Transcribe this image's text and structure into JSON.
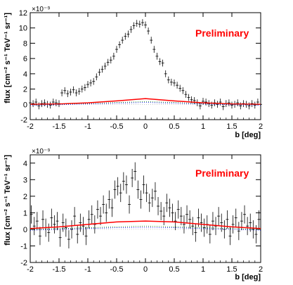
{
  "chart_data": [
    {
      "type": "scatter",
      "xlabel": "b [deg]",
      "ylabel": "flux [cm⁻² s⁻¹ TeV⁻¹ sr⁻¹]",
      "exponent": "×10⁻⁹",
      "annotation": "Preliminary",
      "annotation_color": "#ff0000",
      "xlim": [
        -2,
        2
      ],
      "ylim": [
        -2,
        12
      ],
      "xticks": [
        "-2",
        "-1.5",
        "-1",
        "-0.5",
        "0",
        "0.5",
        "1",
        "1.5",
        "2"
      ],
      "yticks": [
        "-2",
        "0",
        "2",
        "4",
        "6",
        "8",
        "10",
        "12"
      ],
      "series": [
        {
          "kind": "points",
          "color": "#000000",
          "x": [
            -2.0,
            -1.95,
            -1.9,
            -1.85,
            -1.8,
            -1.75,
            -1.7,
            -1.65,
            -1.6,
            -1.55,
            -1.5,
            -1.45,
            -1.4,
            -1.35,
            -1.3,
            -1.25,
            -1.2,
            -1.15,
            -1.1,
            -1.05,
            -1.0,
            -0.95,
            -0.9,
            -0.85,
            -0.8,
            -0.75,
            -0.7,
            -0.65,
            -0.6,
            -0.55,
            -0.5,
            -0.45,
            -0.4,
            -0.35,
            -0.3,
            -0.25,
            -0.2,
            -0.15,
            -0.1,
            -0.05,
            0.0,
            0.05,
            0.1,
            0.15,
            0.2,
            0.25,
            0.3,
            0.35,
            0.4,
            0.45,
            0.5,
            0.55,
            0.6,
            0.65,
            0.7,
            0.75,
            0.8,
            0.85,
            0.9,
            0.95,
            1.0,
            1.05,
            1.1,
            1.15,
            1.2,
            1.25,
            1.3,
            1.35,
            1.4,
            1.45,
            1.5,
            1.55,
            1.6,
            1.65,
            1.7,
            1.75,
            1.8,
            1.85,
            1.9,
            1.95,
            2.0
          ],
          "y": [
            0.2,
            0.1,
            0.3,
            -0.2,
            0.1,
            0.2,
            0.0,
            -0.1,
            0.3,
            0.2,
            0.1,
            1.5,
            1.8,
            1.4,
            1.6,
            1.9,
            1.5,
            1.7,
            2.0,
            2.2,
            2.6,
            2.8,
            3.0,
            3.6,
            4.2,
            4.6,
            5.0,
            5.5,
            5.8,
            6.3,
            7.2,
            7.8,
            8.4,
            8.9,
            9.2,
            9.8,
            10.3,
            10.6,
            10.5,
            10.7,
            10.4,
            9.6,
            8.4,
            7.2,
            6.3,
            5.6,
            5.4,
            4.0,
            3.2,
            2.9,
            2.8,
            2.5,
            2.1,
            1.8,
            1.3,
            0.9,
            0.6,
            0.5,
            0.2,
            -0.2,
            0.4,
            0.3,
            0.1,
            -0.1,
            0.2,
            0.0,
            0.3,
            -0.3,
            0.1,
            0.2,
            -0.1,
            0.0,
            0.2,
            -0.2,
            0.1,
            0.0,
            -0.2,
            0.1,
            -0.1,
            0.3,
            0.0
          ],
          "err": [
            0.45,
            0.45,
            0.45,
            0.45,
            0.45,
            0.45,
            0.45,
            0.45,
            0.45,
            0.45,
            0.45,
            0.45,
            0.45,
            0.45,
            0.45,
            0.45,
            0.45,
            0.45,
            0.45,
            0.45,
            0.45,
            0.45,
            0.45,
            0.45,
            0.45,
            0.45,
            0.45,
            0.45,
            0.45,
            0.45,
            0.45,
            0.45,
            0.45,
            0.45,
            0.45,
            0.45,
            0.45,
            0.45,
            0.45,
            0.45,
            0.45,
            0.45,
            0.45,
            0.45,
            0.45,
            0.45,
            0.45,
            0.45,
            0.45,
            0.45,
            0.45,
            0.45,
            0.45,
            0.45,
            0.45,
            0.45,
            0.45,
            0.45,
            0.45,
            0.45,
            0.45,
            0.45,
            0.45,
            0.45,
            0.45,
            0.45,
            0.45,
            0.45,
            0.45,
            0.45,
            0.45,
            0.45,
            0.45,
            0.45,
            0.45,
            0.45,
            0.45,
            0.45,
            0.45,
            0.45,
            0.45
          ]
        },
        {
          "kind": "line",
          "color": "#ff0000",
          "x": [
            -2.0,
            -1.5,
            -1.0,
            -0.5,
            -0.25,
            0.0,
            0.25,
            0.5,
            1.0,
            1.5,
            2.0
          ],
          "y": [
            0.0,
            0.05,
            0.2,
            0.45,
            0.6,
            0.75,
            0.6,
            0.45,
            0.2,
            0.05,
            0.0
          ]
        },
        {
          "kind": "dotted",
          "color": "#008000",
          "x": [
            -2.0,
            -1.5,
            -1.0,
            -0.5,
            0.0,
            0.5,
            1.0,
            1.5,
            2.0
          ],
          "y": [
            -0.05,
            0.0,
            0.1,
            0.25,
            0.35,
            0.25,
            0.1,
            0.0,
            -0.05
          ]
        },
        {
          "kind": "dotted",
          "color": "#0000ff",
          "x": [
            -2.0,
            -1.5,
            -1.0,
            -0.5,
            0.0,
            0.5,
            1.0,
            1.5,
            2.0
          ],
          "y": [
            -0.1,
            -0.05,
            0.05,
            0.15,
            0.25,
            0.15,
            0.05,
            -0.05,
            -0.1
          ]
        }
      ]
    },
    {
      "type": "scatter",
      "xlabel": "b [deg]",
      "ylabel": "flux [cm⁻² s⁻¹ TeV⁻¹ sr⁻¹]",
      "exponent": "×10⁻⁹",
      "annotation": "Preliminary",
      "annotation_color": "#ff0000",
      "xlim": [
        -2,
        2
      ],
      "ylim": [
        -2,
        4.5
      ],
      "xticks": [
        "-2",
        "-1.5",
        "-1",
        "-0.5",
        "0",
        "0.5",
        "1",
        "1.5",
        "2"
      ],
      "yticks": [
        "-2",
        "-1",
        "0",
        "1",
        "2",
        "3",
        "4"
      ],
      "series": [
        {
          "kind": "points",
          "color": "#000000",
          "x": [
            -1.98,
            -1.93,
            -1.88,
            -1.83,
            -1.78,
            -1.73,
            -1.68,
            -1.63,
            -1.58,
            -1.53,
            -1.48,
            -1.43,
            -1.38,
            -1.33,
            -1.28,
            -1.23,
            -1.18,
            -1.13,
            -1.08,
            -1.03,
            -0.98,
            -0.93,
            -0.88,
            -0.83,
            -0.78,
            -0.73,
            -0.68,
            -0.63,
            -0.58,
            -0.53,
            -0.48,
            -0.43,
            -0.38,
            -0.33,
            -0.28,
            -0.23,
            -0.18,
            -0.13,
            -0.08,
            -0.03,
            0.02,
            0.07,
            0.12,
            0.17,
            0.22,
            0.27,
            0.32,
            0.37,
            0.42,
            0.47,
            0.52,
            0.57,
            0.62,
            0.67,
            0.72,
            0.77,
            0.82,
            0.87,
            0.92,
            0.97,
            1.02,
            1.07,
            1.12,
            1.17,
            1.22,
            1.27,
            1.32,
            1.37,
            1.42,
            1.47,
            1.52,
            1.57,
            1.62,
            1.67,
            1.72,
            1.77,
            1.82,
            1.87,
            1.92,
            1.97
          ],
          "y": [
            0.9,
            0.2,
            0.5,
            -0.4,
            0.6,
            0.1,
            -0.2,
            0.7,
            0.3,
            0.5,
            -0.5,
            0.4,
            0.1,
            -0.6,
            0.0,
            0.8,
            -0.3,
            0.4,
            0.2,
            -0.4,
            0.6,
            0.9,
            0.3,
            1.2,
            0.8,
            1.5,
            1.0,
            1.8,
            1.3,
            2.4,
            2.6,
            2.2,
            2.9,
            2.7,
            1.5,
            3.1,
            3.5,
            2.4,
            1.8,
            2.7,
            2.2,
            1.6,
            1.9,
            2.3,
            1.4,
            1.1,
            0.8,
            1.6,
            1.3,
            1.0,
            0.5,
            1.2,
            0.8,
            0.3,
            0.9,
            0.6,
            0.2,
            -0.2,
            0.7,
            0.4,
            0.1,
            0.3,
            -0.3,
            0.5,
            0.2,
            0.8,
            0.4,
            0.0,
            0.6,
            -0.4,
            0.3,
            0.7,
            -0.1,
            0.5,
            0.9,
            0.2,
            0.4,
            0.0,
            -0.3,
            0.6
          ],
          "err": [
            0.55,
            0.55,
            0.55,
            0.55,
            0.55,
            0.55,
            0.55,
            0.55,
            0.55,
            0.55,
            0.55,
            0.55,
            0.55,
            0.55,
            0.55,
            0.55,
            0.55,
            0.55,
            0.55,
            0.55,
            0.55,
            0.55,
            0.55,
            0.55,
            0.55,
            0.55,
            0.55,
            0.55,
            0.55,
            0.55,
            0.55,
            0.55,
            0.55,
            0.55,
            0.55,
            0.55,
            0.55,
            0.55,
            0.55,
            0.55,
            0.55,
            0.55,
            0.55,
            0.55,
            0.55,
            0.55,
            0.55,
            0.55,
            0.55,
            0.55,
            0.55,
            0.55,
            0.55,
            0.55,
            0.55,
            0.55,
            0.55,
            0.55,
            0.55,
            0.55,
            0.55,
            0.55,
            0.55,
            0.55,
            0.55,
            0.55,
            0.55,
            0.55,
            0.55,
            0.55,
            0.55,
            0.55,
            0.55,
            0.55,
            0.55,
            0.55,
            0.55,
            0.55,
            0.55,
            0.55
          ]
        },
        {
          "kind": "line",
          "color": "#ff0000",
          "x": [
            -2.0,
            -1.5,
            -1.0,
            -0.5,
            0.0,
            0.5,
            1.0,
            1.5,
            2.0
          ],
          "y": [
            0.05,
            0.15,
            0.3,
            0.45,
            0.5,
            0.45,
            0.3,
            0.15,
            0.05
          ]
        },
        {
          "kind": "dotted",
          "color": "#008000",
          "x": [
            -2.0,
            -1.5,
            -1.0,
            -0.5,
            0.0,
            0.5,
            1.0,
            1.5,
            2.0
          ],
          "y": [
            0.0,
            0.05,
            0.1,
            0.15,
            0.2,
            0.15,
            0.1,
            0.05,
            0.0
          ]
        },
        {
          "kind": "dotted",
          "color": "#0000ff",
          "x": [
            -2.0,
            -1.5,
            -1.0,
            -0.5,
            0.0,
            0.5,
            1.0,
            1.5,
            2.0
          ],
          "y": [
            -0.05,
            0.0,
            0.05,
            0.1,
            0.12,
            0.1,
            0.05,
            0.0,
            -0.05
          ]
        }
      ]
    }
  ]
}
